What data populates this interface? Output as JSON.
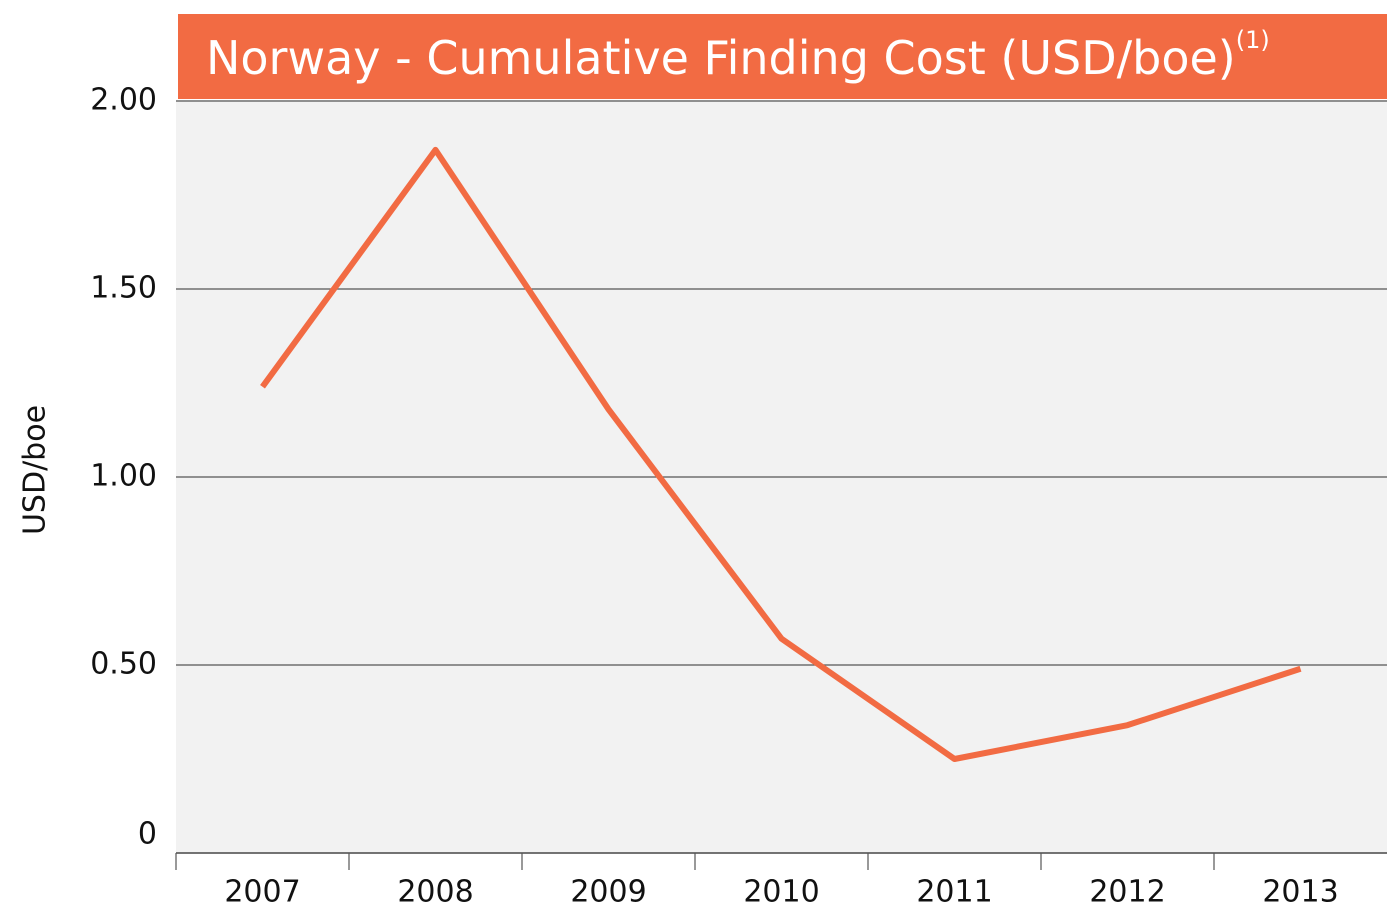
{
  "chart_data": {
    "type": "line",
    "title": "Norway - Cumulative Finding Cost (USD/boe)",
    "title_note": "(1)",
    "y_label": "USD/boe",
    "categories": [
      "2007",
      "2008",
      "2009",
      "2010",
      "2011",
      "2012",
      "2013"
    ],
    "series": [
      {
        "name": "Finding cost",
        "color": "#f26b43",
        "values": [
          1.24,
          1.87,
          1.18,
          0.57,
          0.25,
          0.34,
          0.49
        ]
      }
    ],
    "ylim": [
      0,
      2
    ],
    "yticks": [
      0,
      {
        "value": 0.5,
        "label": "0.50"
      },
      {
        "value": 1,
        "label": "1.00"
      },
      {
        "value": 1.5,
        "label": "1.50"
      },
      {
        "value": 2,
        "label": "2.00"
      }
    ],
    "grid": true
  }
}
